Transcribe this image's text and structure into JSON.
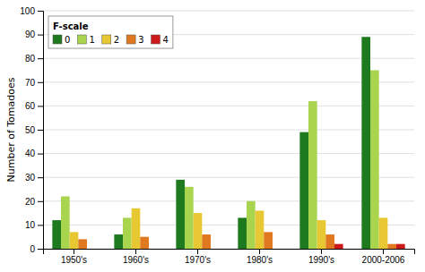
{
  "chart_data": {
    "type": "bar",
    "ylabel": "Number of Tomadoes",
    "legend_title": "F-scale",
    "categories": [
      "1950's",
      "1960's",
      "1970's",
      "1980's",
      "1990's",
      "2000-2006"
    ],
    "series": [
      {
        "name": "0",
        "color": "#1e7a1e",
        "values": [
          12,
          6,
          29,
          13,
          49,
          89
        ]
      },
      {
        "name": "1",
        "color": "#a8d44e",
        "values": [
          22,
          13,
          26,
          20,
          62,
          75
        ]
      },
      {
        "name": "2",
        "color": "#e8c832",
        "values": [
          7,
          17,
          15,
          16,
          12,
          13
        ]
      },
      {
        "name": "3",
        "color": "#e07820",
        "values": [
          4,
          5,
          6,
          7,
          6,
          2
        ]
      },
      {
        "name": "4",
        "color": "#cc1a1a",
        "values": [
          0,
          0,
          0,
          0,
          2,
          2
        ]
      }
    ],
    "ylim": [
      0,
      100
    ],
    "yticks": [
      0,
      10,
      20,
      30,
      40,
      50,
      60,
      70,
      80,
      90,
      100
    ],
    "grid": true,
    "legend": "upper left"
  }
}
